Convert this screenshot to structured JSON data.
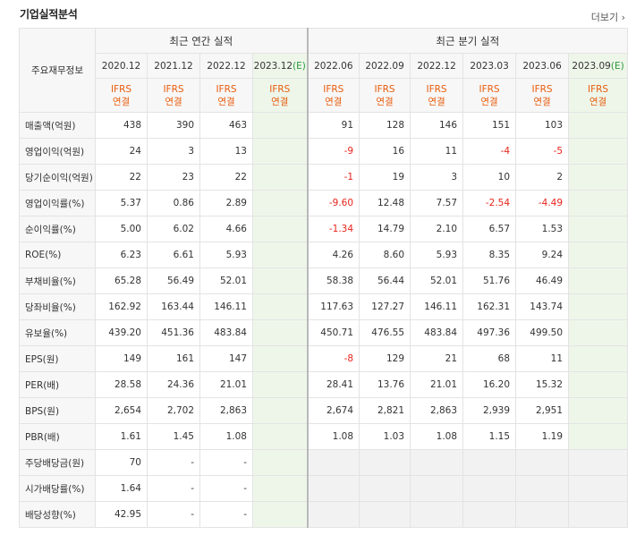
{
  "title": "기업실적분석",
  "more": "더보기",
  "corner_label": "주요재무정보",
  "annual_header": "최근 연간 실적",
  "quarter_header": "최근 분기 실적",
  "annual_dates": [
    "2020.12",
    "2021.12",
    "2022.12",
    "2023.12"
  ],
  "annual_est_suffix": "(E)",
  "quarter_dates": [
    "2022.06",
    "2022.09",
    "2022.12",
    "2023.03",
    "2023.06",
    "2023.09"
  ],
  "quarter_est_suffix": "(E)",
  "ifrs": "IFRS",
  "consolidated": "연결",
  "rows": [
    {
      "label": "매출액(억원)",
      "values": [
        "438",
        "390",
        "463",
        "",
        "91",
        "128",
        "146",
        "151",
        "103",
        ""
      ]
    },
    {
      "label": "영업이익(억원)",
      "values": [
        "24",
        "3",
        "13",
        "",
        "-9",
        "16",
        "11",
        "-4",
        "-5",
        ""
      ]
    },
    {
      "label": "당기순이익(억원)",
      "values": [
        "22",
        "23",
        "22",
        "",
        "-1",
        "19",
        "3",
        "10",
        "2",
        ""
      ]
    },
    {
      "label": "영업이익률(%)",
      "values": [
        "5.37",
        "0.86",
        "2.89",
        "",
        "-9.60",
        "12.48",
        "7.57",
        "-2.54",
        "-4.49",
        ""
      ]
    },
    {
      "label": "순이익률(%)",
      "values": [
        "5.00",
        "6.02",
        "4.66",
        "",
        "-1.34",
        "14.79",
        "2.10",
        "6.57",
        "1.53",
        ""
      ]
    },
    {
      "label": "ROE(%)",
      "values": [
        "6.23",
        "6.61",
        "5.93",
        "",
        "4.26",
        "8.60",
        "5.93",
        "8.35",
        "9.24",
        ""
      ]
    },
    {
      "label": "부채비율(%)",
      "values": [
        "65.28",
        "56.49",
        "52.01",
        "",
        "58.38",
        "56.44",
        "52.01",
        "51.76",
        "46.49",
        ""
      ]
    },
    {
      "label": "당좌비율(%)",
      "values": [
        "162.92",
        "163.44",
        "146.11",
        "",
        "117.63",
        "127.27",
        "146.11",
        "162.31",
        "143.74",
        ""
      ]
    },
    {
      "label": "유보율(%)",
      "values": [
        "439.20",
        "451.36",
        "483.84",
        "",
        "450.71",
        "476.55",
        "483.84",
        "497.36",
        "499.50",
        ""
      ]
    },
    {
      "label": "EPS(원)",
      "values": [
        "149",
        "161",
        "147",
        "",
        "-8",
        "129",
        "21",
        "68",
        "11",
        ""
      ]
    },
    {
      "label": "PER(배)",
      "values": [
        "28.58",
        "24.36",
        "21.01",
        "",
        "28.41",
        "13.76",
        "21.01",
        "16.20",
        "15.32",
        ""
      ]
    },
    {
      "label": "BPS(원)",
      "values": [
        "2,654",
        "2,702",
        "2,863",
        "",
        "2,674",
        "2,821",
        "2,863",
        "2,939",
        "2,951",
        ""
      ]
    },
    {
      "label": "PBR(배)",
      "values": [
        "1.61",
        "1.45",
        "1.08",
        "",
        "1.08",
        "1.03",
        "1.08",
        "1.15",
        "1.19",
        ""
      ]
    },
    {
      "label": "주당배당금(원)",
      "values": [
        "70",
        "-",
        "-",
        "",
        "",
        "",
        "",
        "",
        "",
        ""
      ]
    },
    {
      "label": "시가배당률(%)",
      "values": [
        "1.64",
        "-",
        "-",
        "",
        "",
        "",
        "",
        "",
        "",
        ""
      ]
    },
    {
      "label": "배당성향(%)",
      "values": [
        "42.95",
        "-",
        "-",
        "",
        "",
        "",
        "",
        "",
        "",
        ""
      ]
    }
  ],
  "colors": {
    "negative": "#e8241c",
    "ifrs": "#e85c0d",
    "estimate_bg": "#eef6ea",
    "estimate_mark": "#2a9a3a"
  }
}
